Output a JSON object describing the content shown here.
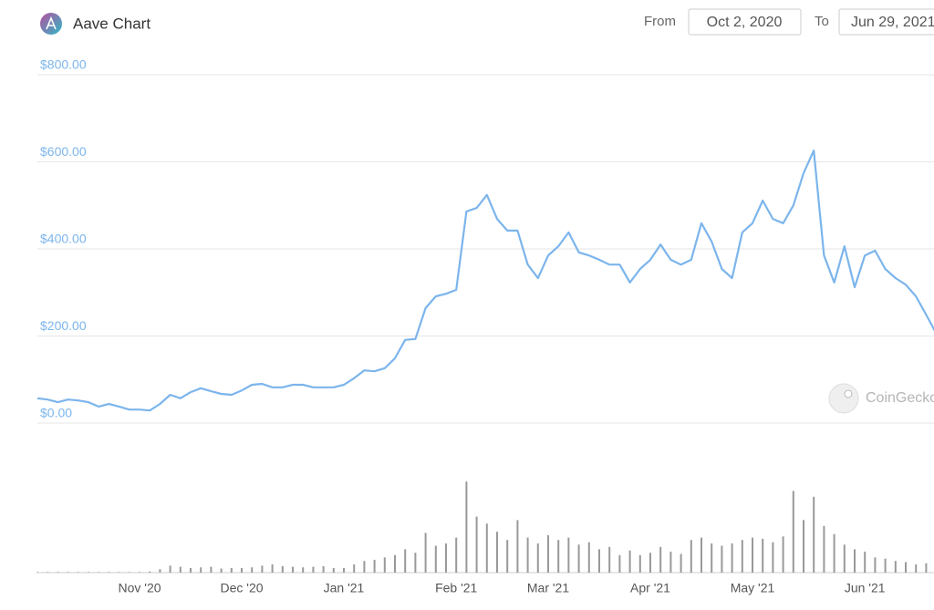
{
  "header": {
    "title": "Aave Chart",
    "from_label": "From",
    "from_date": "Oct 2, 2020",
    "to_label": "To",
    "to_date": "Jun 29, 2021"
  },
  "watermark": "CoinGecko",
  "chart_data": [
    {
      "type": "line",
      "color": "#7cb5ec",
      "grid": true,
      "ylim": [
        0,
        800
      ],
      "yticks": [
        {
          "value": 0,
          "label": "$0.00"
        },
        {
          "value": 200,
          "label": "$200.00"
        },
        {
          "value": 400,
          "label": "$400.00"
        },
        {
          "value": 600,
          "label": "$600.00"
        },
        {
          "value": 800,
          "label": "$800.00"
        }
      ],
      "categories": [
        null,
        null,
        null,
        null,
        null,
        null,
        null,
        null,
        null,
        null,
        "Nov '20",
        null,
        null,
        null,
        null,
        null,
        null,
        null,
        null,
        null,
        "Dec '20",
        null,
        null,
        null,
        null,
        null,
        null,
        null,
        null,
        null,
        "Jan '21",
        null,
        null,
        null,
        null,
        null,
        null,
        null,
        null,
        null,
        null,
        "Feb '21",
        null,
        null,
        null,
        null,
        null,
        null,
        null,
        null,
        "Mar '21",
        null,
        null,
        null,
        null,
        null,
        null,
        null,
        null,
        null,
        "Apr '21",
        null,
        null,
        null,
        null,
        null,
        null,
        null,
        null,
        null,
        "May '21",
        null,
        null,
        null,
        null,
        null,
        null,
        null,
        null,
        null,
        null,
        "Jun '21",
        null,
        null,
        null,
        null,
        null,
        null,
        null
      ],
      "values": [
        57,
        54,
        48,
        54,
        52,
        48,
        38,
        44,
        38,
        31,
        31,
        29,
        44,
        65,
        57,
        71,
        80,
        73,
        67,
        65,
        75,
        88,
        90,
        82,
        82,
        88,
        88,
        82,
        82,
        82,
        88,
        103,
        121,
        119,
        126,
        149,
        191,
        193,
        264,
        291,
        297,
        306,
        486,
        494,
        524,
        469,
        442,
        442,
        364,
        333,
        385,
        406,
        438,
        392,
        385,
        375,
        364,
        364,
        323,
        354,
        375,
        410,
        375,
        364,
        375,
        459,
        417,
        354,
        333,
        438,
        459,
        511,
        469,
        459,
        500,
        574,
        626,
        385,
        323,
        406,
        312,
        385,
        396,
        354,
        333,
        318,
        291,
        249,
        205
      ]
    },
    {
      "type": "bar",
      "color": "#999999",
      "ylim": [
        0,
        1000
      ],
      "values": [
        5,
        5,
        5,
        5,
        5,
        5,
        5,
        5,
        5,
        5,
        5,
        10,
        30,
        60,
        50,
        40,
        45,
        50,
        35,
        40,
        40,
        45,
        60,
        70,
        55,
        50,
        45,
        50,
        55,
        40,
        40,
        70,
        100,
        110,
        130,
        150,
        200,
        170,
        340,
        230,
        250,
        300,
        780,
        480,
        420,
        350,
        280,
        450,
        300,
        250,
        320,
        280,
        300,
        240,
        260,
        200,
        220,
        150,
        190,
        150,
        170,
        220,
        180,
        160,
        280,
        300,
        250,
        230,
        250,
        280,
        300,
        290,
        260,
        310,
        700,
        450,
        650,
        400,
        330,
        240,
        200,
        180,
        130,
        120,
        100,
        90,
        70,
        80,
        130
      ]
    }
  ]
}
